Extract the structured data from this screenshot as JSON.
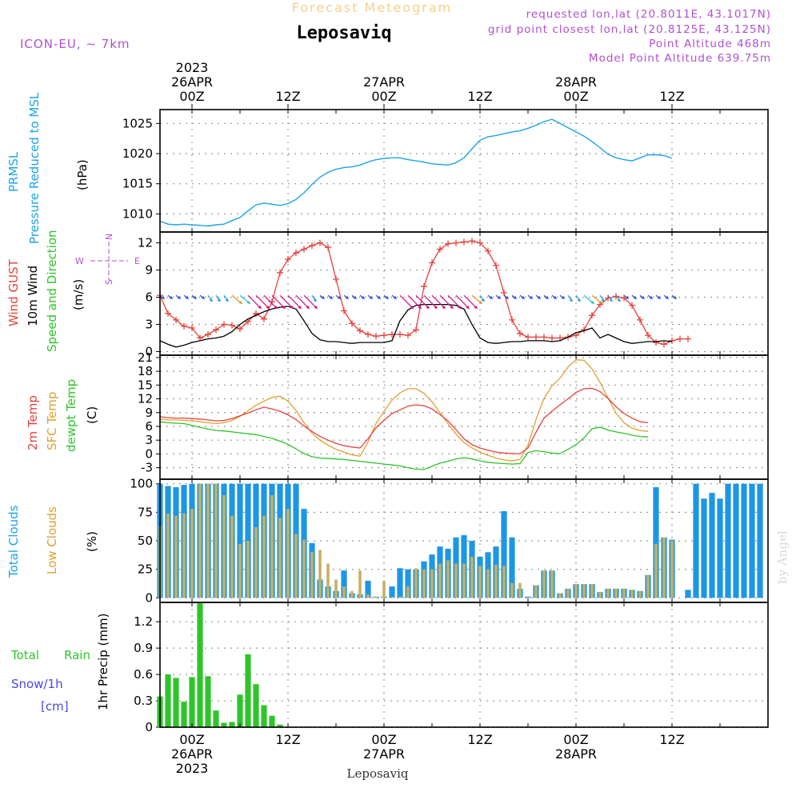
{
  "header": {
    "title_top": "Forecast Meteogram",
    "title_main": "Leposaviq",
    "model": "ICON-EU, ~ 7km",
    "requested": "requested lon,lat (20.8011E, 43.1017N)",
    "grid_point": "grid point closest lon,lat (20.8125E, 43.125N)",
    "point_altitude": "Point Altitude 468m",
    "model_altitude": "Model Point Altitude 639.75m"
  },
  "watermark": "by Angel",
  "footer_location": "Leposaviq",
  "time_axis": {
    "top_labels": [
      {
        "t": 0,
        "lines": [
          "2023",
          "26APR",
          "00Z"
        ]
      },
      {
        "t": 12,
        "lines": [
          "12Z"
        ]
      },
      {
        "t": 24,
        "lines": [
          "27APR",
          "00Z"
        ]
      },
      {
        "t": 36,
        "lines": [
          "12Z"
        ]
      },
      {
        "t": 48,
        "lines": [
          "28APR",
          "00Z"
        ]
      },
      {
        "t": 60,
        "lines": [
          "12Z"
        ]
      }
    ],
    "bottom_labels": [
      {
        "t": 0,
        "lines": [
          "00Z",
          "26APR",
          "2023"
        ]
      },
      {
        "t": 12,
        "lines": [
          "12Z"
        ]
      },
      {
        "t": 24,
        "lines": [
          "00Z",
          "27APR"
        ]
      },
      {
        "t": 36,
        "lines": [
          "12Z"
        ]
      },
      {
        "t": 48,
        "lines": [
          "00Z",
          "28APR"
        ]
      },
      {
        "t": 60,
        "lines": [
          "12Z"
        ]
      }
    ]
  },
  "panel_labels": {
    "pressure": {
      "main1": "PRMSL",
      "main2": "Pressure Reduced to MSL",
      "unit": "(hPa)"
    },
    "wind": {
      "l1": "Wind GUST",
      "l2": "10m Wind",
      "l3": "Speed and Direction",
      "unit": "(m/s)",
      "compass_n": "N",
      "compass_s": "S",
      "compass_w": "W",
      "compass_e": "E"
    },
    "temp": {
      "l1": "2m Temp",
      "l2": "SFC Temp",
      "l3": "dewpt Temp",
      "unit": "(C)"
    },
    "clouds": {
      "l1": "Total Clouds",
      "l2": "Low Clouds",
      "unit": "(%)"
    },
    "precip": {
      "l1": "Total",
      "l1b": "Rain",
      "l2": "Snow/1h",
      "l3": "[cm]",
      "axis": "1hr Precip (mm)"
    }
  },
  "colors": {
    "pressure": "#1ca3e8",
    "gust": "#e8413a",
    "wind": "#000000",
    "temp2m": "#e8413a",
    "sfc": "#e0a030",
    "dewpt": "#2ec42a",
    "total_clouds": "#1e96e6",
    "low_clouds": "#c8b060",
    "rain": "#2ec42a",
    "snow": "#4848e0",
    "title_top": "#f5d08a",
    "info": "#b050d0"
  },
  "chart_data": [
    {
      "type": "line",
      "name": "pressure",
      "x_start": -4,
      "x_step": 1,
      "ylim": [
        1007,
        1027.3
      ],
      "yticks": [
        1010,
        1015,
        1020,
        1025
      ],
      "series": [
        {
          "name": "PRMSL",
          "values": [
            1008.8,
            1008.3,
            1008.2,
            1008.3,
            1008.2,
            1008.1,
            1008.0,
            1008.2,
            1008.3,
            1008.9,
            1009.4,
            1010.5,
            1011.5,
            1011.8,
            1011.6,
            1011.4,
            1011.7,
            1012.4,
            1013.5,
            1014.9,
            1016.1,
            1016.9,
            1017.4,
            1017.7,
            1017.8,
            1018.1,
            1018.6,
            1019.0,
            1019.2,
            1019.3,
            1019.3,
            1019.0,
            1018.8,
            1018.6,
            1018.3,
            1018.2,
            1018.1,
            1018.5,
            1019.3,
            1020.8,
            1022.2,
            1022.8,
            1023.0,
            1023.3,
            1023.6,
            1023.8,
            1024.2,
            1024.7,
            1025.3,
            1025.7,
            1025.0,
            1024.3,
            1023.6,
            1022.9,
            1022.0,
            1021.0,
            1019.9,
            1019.3,
            1019.0,
            1018.8,
            1019.3,
            1019.8,
            1019.8,
            1019.7,
            1019.2
          ]
        }
      ]
    },
    {
      "type": "line",
      "name": "wind",
      "x_start": -4,
      "x_step": 1,
      "ylim": [
        -0.4,
        13.2
      ],
      "yticks": [
        0,
        3,
        6,
        9,
        12
      ],
      "series": [
        {
          "name": "Wind GUST",
          "values": [
            6.2,
            4.2,
            3.5,
            2.8,
            2.6,
            1.5,
            1.9,
            2.4,
            3.0,
            2.9,
            2.5,
            3.3,
            4.2,
            3.6,
            5.5,
            8.7,
            10.2,
            10.9,
            11.3,
            11.7,
            12.0,
            11.5,
            8.0,
            4.5,
            3.1,
            2.3,
            1.9,
            1.7,
            1.8,
            1.9,
            1.9,
            1.8,
            2.4,
            7.2,
            9.8,
            11.3,
            11.9,
            12.0,
            12.1,
            12.2,
            12.0,
            11.1,
            9.5,
            6.5,
            3.5,
            2.0,
            1.6,
            1.6,
            1.6,
            1.5,
            1.5,
            1.6,
            1.8,
            2.4,
            4.0,
            5.2,
            5.9,
            6.1,
            5.9,
            5.1,
            3.5,
            1.8,
            1.0,
            0.8,
            1.2,
            1.4,
            1.4
          ]
        },
        {
          "name": "10m Wind",
          "values": [
            1.2,
            0.8,
            0.5,
            0.7,
            1.0,
            1.2,
            1.4,
            1.5,
            1.7,
            2.2,
            3.0,
            3.6,
            4.0,
            4.4,
            4.7,
            4.9,
            5.0,
            4.7,
            3.4,
            2.0,
            1.3,
            1.1,
            1.1,
            1.0,
            0.9,
            1.0,
            1.0,
            1.0,
            1.0,
            1.2,
            3.4,
            4.6,
            5.1,
            5.2,
            5.2,
            5.2,
            5.2,
            5.1,
            4.7,
            3.0,
            1.5,
            1.0,
            0.9,
            1.0,
            1.1,
            1.1,
            1.2,
            1.2,
            1.2,
            1.1,
            1.2,
            1.6,
            2.1,
            2.3,
            2.6,
            1.5,
            1.9,
            1.5,
            1.1,
            0.9,
            1.0,
            1.1,
            1.1,
            1.2,
            1.1
          ]
        }
      ]
    },
    {
      "type": "line",
      "name": "temperature",
      "x_start": -4,
      "x_step": 1,
      "ylim": [
        -5.5,
        21.5
      ],
      "yticks": [
        -3,
        0,
        3,
        6,
        9,
        12,
        15,
        18,
        21
      ],
      "series": [
        {
          "name": "2m Temp",
          "values": [
            8.1,
            7.9,
            7.8,
            7.8,
            7.7,
            7.6,
            7.4,
            7.2,
            7.3,
            7.7,
            8.3,
            8.9,
            9.6,
            10.2,
            9.8,
            9.3,
            8.5,
            7.5,
            6.1,
            4.9,
            3.8,
            3.0,
            2.3,
            1.8,
            1.5,
            1.3,
            3.3,
            5.7,
            7.3,
            8.8,
            9.6,
            10.4,
            10.7,
            10.5,
            9.8,
            8.6,
            7.2,
            5.3,
            3.3,
            2.0,
            1.3,
            0.8,
            0.4,
            0.2,
            0.1,
            0.0,
            1.3,
            4.7,
            7.8,
            9.3,
            10.7,
            12.0,
            13.4,
            14.2,
            14.3,
            13.6,
            12.1,
            10.3,
            8.8,
            7.8,
            7.0,
            6.8
          ]
        },
        {
          "name": "SFC Temp",
          "values": [
            7.6,
            7.4,
            7.4,
            7.3,
            7.2,
            7.0,
            6.8,
            6.6,
            6.8,
            7.3,
            8.2,
            9.4,
            10.6,
            11.5,
            12.3,
            12.6,
            11.5,
            9.5,
            6.8,
            4.5,
            3.0,
            1.9,
            1.0,
            0.4,
            -0.2,
            -0.5,
            2.6,
            6.6,
            9.3,
            11.7,
            13.3,
            14.2,
            14.2,
            13.2,
            11.4,
            9.0,
            6.6,
            4.3,
            2.5,
            1.3,
            0.4,
            -0.3,
            -0.9,
            -1.3,
            -1.5,
            -1.2,
            1.9,
            7.5,
            12.1,
            14.8,
            16.5,
            18.9,
            20.5,
            20.4,
            18.5,
            15.6,
            12.2,
            8.9,
            6.8,
            5.6,
            5.1,
            4.9
          ]
        },
        {
          "name": "dewpt Temp",
          "values": [
            7.0,
            6.8,
            6.7,
            6.6,
            6.2,
            5.8,
            5.4,
            5.1,
            5.0,
            4.8,
            4.6,
            4.4,
            4.2,
            3.8,
            3.4,
            2.8,
            2.1,
            1.1,
            0.1,
            -0.6,
            -0.9,
            -1.0,
            -1.1,
            -1.2,
            -1.4,
            -1.6,
            -1.8,
            -2.0,
            -2.2,
            -2.4,
            -2.6,
            -3.0,
            -3.3,
            -3.4,
            -2.7,
            -2.0,
            -1.6,
            -1.1,
            -0.8,
            -1.1,
            -1.5,
            -1.8,
            -2.0,
            -2.1,
            -2.2,
            -2.1,
            0.3,
            0.7,
            0.5,
            0.2,
            0.1,
            1.0,
            2.0,
            3.5,
            5.5,
            5.8,
            5.2,
            4.8,
            4.5,
            4.1,
            3.8,
            3.7
          ]
        }
      ]
    },
    {
      "type": "bar",
      "name": "clouds",
      "x_start": -4,
      "x_step": 1,
      "ylim": [
        -4,
        104
      ],
      "yticks": [
        0,
        25,
        50,
        75,
        100
      ],
      "series": [
        {
          "name": "Total Clouds",
          "values": [
            100,
            98,
            97,
            99,
            100,
            100,
            100,
            100,
            100,
            100,
            100,
            100,
            100,
            100,
            100,
            100,
            100,
            100,
            78,
            48,
            16,
            10,
            6,
            24,
            4,
            3,
            15,
            1,
            1,
            10,
            26,
            25,
            25,
            32,
            38,
            45,
            43,
            53,
            55,
            50,
            36,
            40,
            45,
            76,
            53,
            8,
            1,
            11,
            24,
            24,
            4,
            8,
            12,
            12,
            12,
            5,
            8,
            8,
            8,
            7,
            6,
            20,
            97,
            53,
            51,
            0,
            7,
            100,
            87,
            92,
            87,
            100,
            100,
            100,
            100,
            100
          ]
        },
        {
          "name": "Low Clouds",
          "values": [
            63,
            74,
            72,
            74,
            78,
            100,
            100,
            100,
            90,
            72,
            47,
            50,
            62,
            72,
            90,
            70,
            78,
            56,
            51,
            40,
            42,
            30,
            16,
            10,
            6,
            24,
            3,
            1,
            15,
            1,
            1,
            10,
            26,
            25,
            25,
            30,
            33,
            30,
            30,
            36,
            28,
            25,
            29,
            28,
            13,
            13,
            0,
            11,
            24,
            24,
            4,
            8,
            12,
            12,
            12,
            5,
            8,
            8,
            8,
            7,
            6,
            20,
            47,
            53,
            50,
            0,
            0,
            0,
            0,
            0,
            0,
            0,
            0,
            0,
            0,
            0
          ]
        }
      ]
    },
    {
      "type": "bar",
      "name": "precipitation",
      "x_start": -4,
      "x_step": 1,
      "ylim": [
        0,
        1.42
      ],
      "yticks": [
        0,
        0.3,
        0.6,
        0.9,
        1.2
      ],
      "series": [
        {
          "name": "Total Rain",
          "values": [
            0.35,
            0.6,
            0.56,
            0.29,
            0.57,
            1.41,
            0.58,
            0.19,
            0.05,
            0.06,
            0.37,
            0.83,
            0.49,
            0.25,
            0.13,
            0.03,
            0.0,
            0.0
          ]
        }
      ]
    }
  ]
}
